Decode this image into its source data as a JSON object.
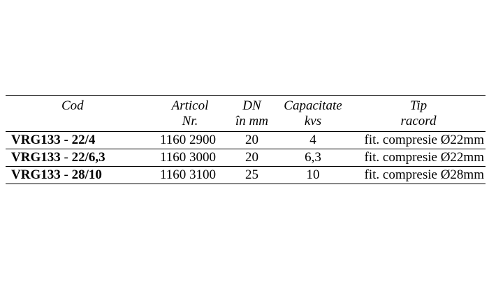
{
  "table": {
    "headers": {
      "cod": [
        "Cod"
      ],
      "articol": [
        "Articol",
        "Nr."
      ],
      "dn": [
        "DN",
        "în mm"
      ],
      "capacitate": [
        "Capacitate",
        "kvs"
      ],
      "tip": [
        "Tip",
        "racord"
      ]
    },
    "rows": [
      {
        "cod_model": "VRG133",
        "cod_separator": " - ",
        "cod_size": "22/4",
        "articol": "1160 2900",
        "dn": "20",
        "capacitate": "4",
        "tip": "fit. compresie Ø22mm"
      },
      {
        "cod_model": "VRG133",
        "cod_separator": " - ",
        "cod_size": "22/6,3",
        "articol": "1160 3000",
        "dn": "20",
        "capacitate": "6,3",
        "tip": "fit. compresie Ø22mm"
      },
      {
        "cod_model": "VRG133",
        "cod_separator": " - ",
        "cod_size": "28/10",
        "articol": "1160 3100",
        "dn": "25",
        "capacitate": "10",
        "tip": "fit. compresie Ø28mm"
      }
    ]
  }
}
